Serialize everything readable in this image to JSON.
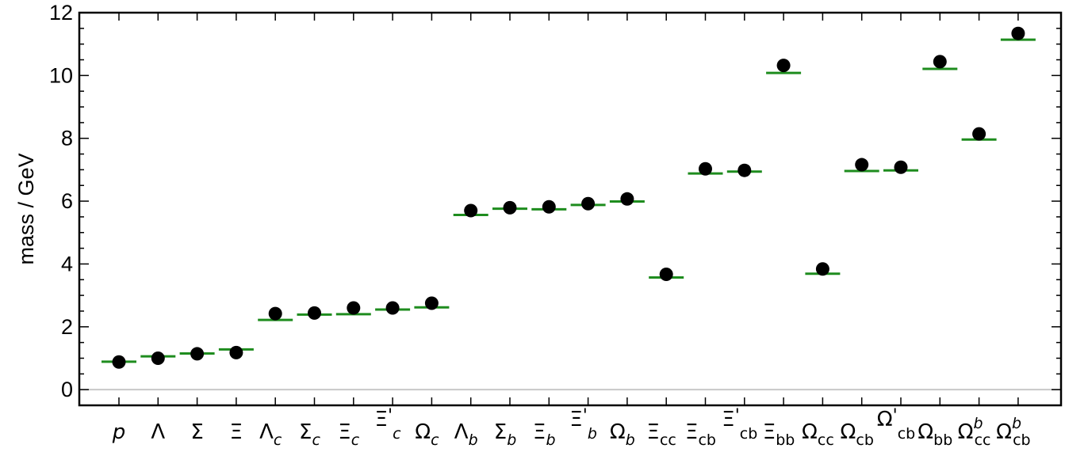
{
  "chart_data": {
    "type": "scatter",
    "title": "",
    "xlabel": "",
    "ylabel": "mass / GeV",
    "ylim": [
      -0.5,
      12
    ],
    "yticks": [
      0,
      2,
      4,
      6,
      8,
      10,
      12
    ],
    "grid": false,
    "zero_line": true,
    "categories": [
      {
        "base": "p",
        "sub": "",
        "sup": "",
        "prime": false,
        "italic": true
      },
      {
        "base": "Λ",
        "sub": "",
        "sup": "",
        "prime": false,
        "italic": false
      },
      {
        "base": "Σ",
        "sub": "",
        "sup": "",
        "prime": false,
        "italic": false
      },
      {
        "base": "Ξ",
        "sub": "",
        "sup": "",
        "prime": false,
        "italic": false
      },
      {
        "base": "Λ",
        "sub": "c",
        "sup": "",
        "prime": false,
        "italic": false
      },
      {
        "base": "Σ",
        "sub": "c",
        "sup": "",
        "prime": false,
        "italic": false
      },
      {
        "base": "Ξ",
        "sub": "c",
        "sup": "",
        "prime": false,
        "italic": false
      },
      {
        "base": "Ξ",
        "sub": "c",
        "sup": "",
        "prime": true,
        "italic": false
      },
      {
        "base": "Ω",
        "sub": "c",
        "sup": "",
        "prime": false,
        "italic": false
      },
      {
        "base": "Λ",
        "sub": "b",
        "sup": "",
        "prime": false,
        "italic": false
      },
      {
        "base": "Σ",
        "sub": "b",
        "sup": "",
        "prime": false,
        "italic": false
      },
      {
        "base": "Ξ",
        "sub": "b",
        "sup": "",
        "prime": false,
        "italic": false
      },
      {
        "base": "Ξ",
        "sub": "b",
        "sup": "",
        "prime": true,
        "italic": false
      },
      {
        "base": "Ω",
        "sub": "b",
        "sup": "",
        "prime": false,
        "italic": false
      },
      {
        "base": "Ξ",
        "sub": "cc",
        "sup": "",
        "prime": false,
        "italic": false
      },
      {
        "base": "Ξ",
        "sub": "cb",
        "sup": "",
        "prime": false,
        "italic": false
      },
      {
        "base": "Ξ",
        "sub": "cb",
        "sup": "",
        "prime": true,
        "italic": false
      },
      {
        "base": "Ξ",
        "sub": "bb",
        "sup": "",
        "prime": false,
        "italic": false
      },
      {
        "base": "Ω",
        "sub": "cc",
        "sup": "",
        "prime": false,
        "italic": false
      },
      {
        "base": "Ω",
        "sub": "cb",
        "sup": "",
        "prime": false,
        "italic": false
      },
      {
        "base": "Ω",
        "sub": "cb",
        "sup": "",
        "prime": true,
        "italic": false
      },
      {
        "base": "Ω",
        "sub": "bb",
        "sup": "",
        "prime": false,
        "italic": false
      },
      {
        "base": "Ω",
        "sub": "cc",
        "sup": "b",
        "prime": false,
        "italic": false
      },
      {
        "base": "Ω",
        "sub": "cb",
        "sup": "b",
        "prime": false,
        "italic": false
      }
    ],
    "series": [
      {
        "marker": "circle",
        "color": "#000000",
        "values": [
          0.88,
          1.0,
          1.14,
          1.18,
          2.42,
          2.44,
          2.6,
          2.6,
          2.75,
          5.7,
          5.79,
          5.82,
          5.92,
          6.07,
          3.67,
          7.03,
          6.98,
          10.32,
          3.84,
          7.16,
          7.08,
          10.44,
          8.14,
          11.34
        ]
      },
      {
        "marker": "hline",
        "color": "#1e8c1e",
        "values": [
          0.89,
          1.06,
          1.15,
          1.28,
          2.22,
          2.39,
          2.4,
          2.55,
          2.62,
          5.56,
          5.76,
          5.74,
          5.88,
          5.99,
          3.57,
          6.88,
          6.94,
          10.08,
          3.69,
          6.96,
          6.98,
          10.21,
          7.96,
          11.14
        ]
      }
    ],
    "colors": {
      "points": "#000000",
      "levels": "#1e8c1e",
      "zero_line": "#c8c8c8",
      "frame": "#000000"
    }
  }
}
